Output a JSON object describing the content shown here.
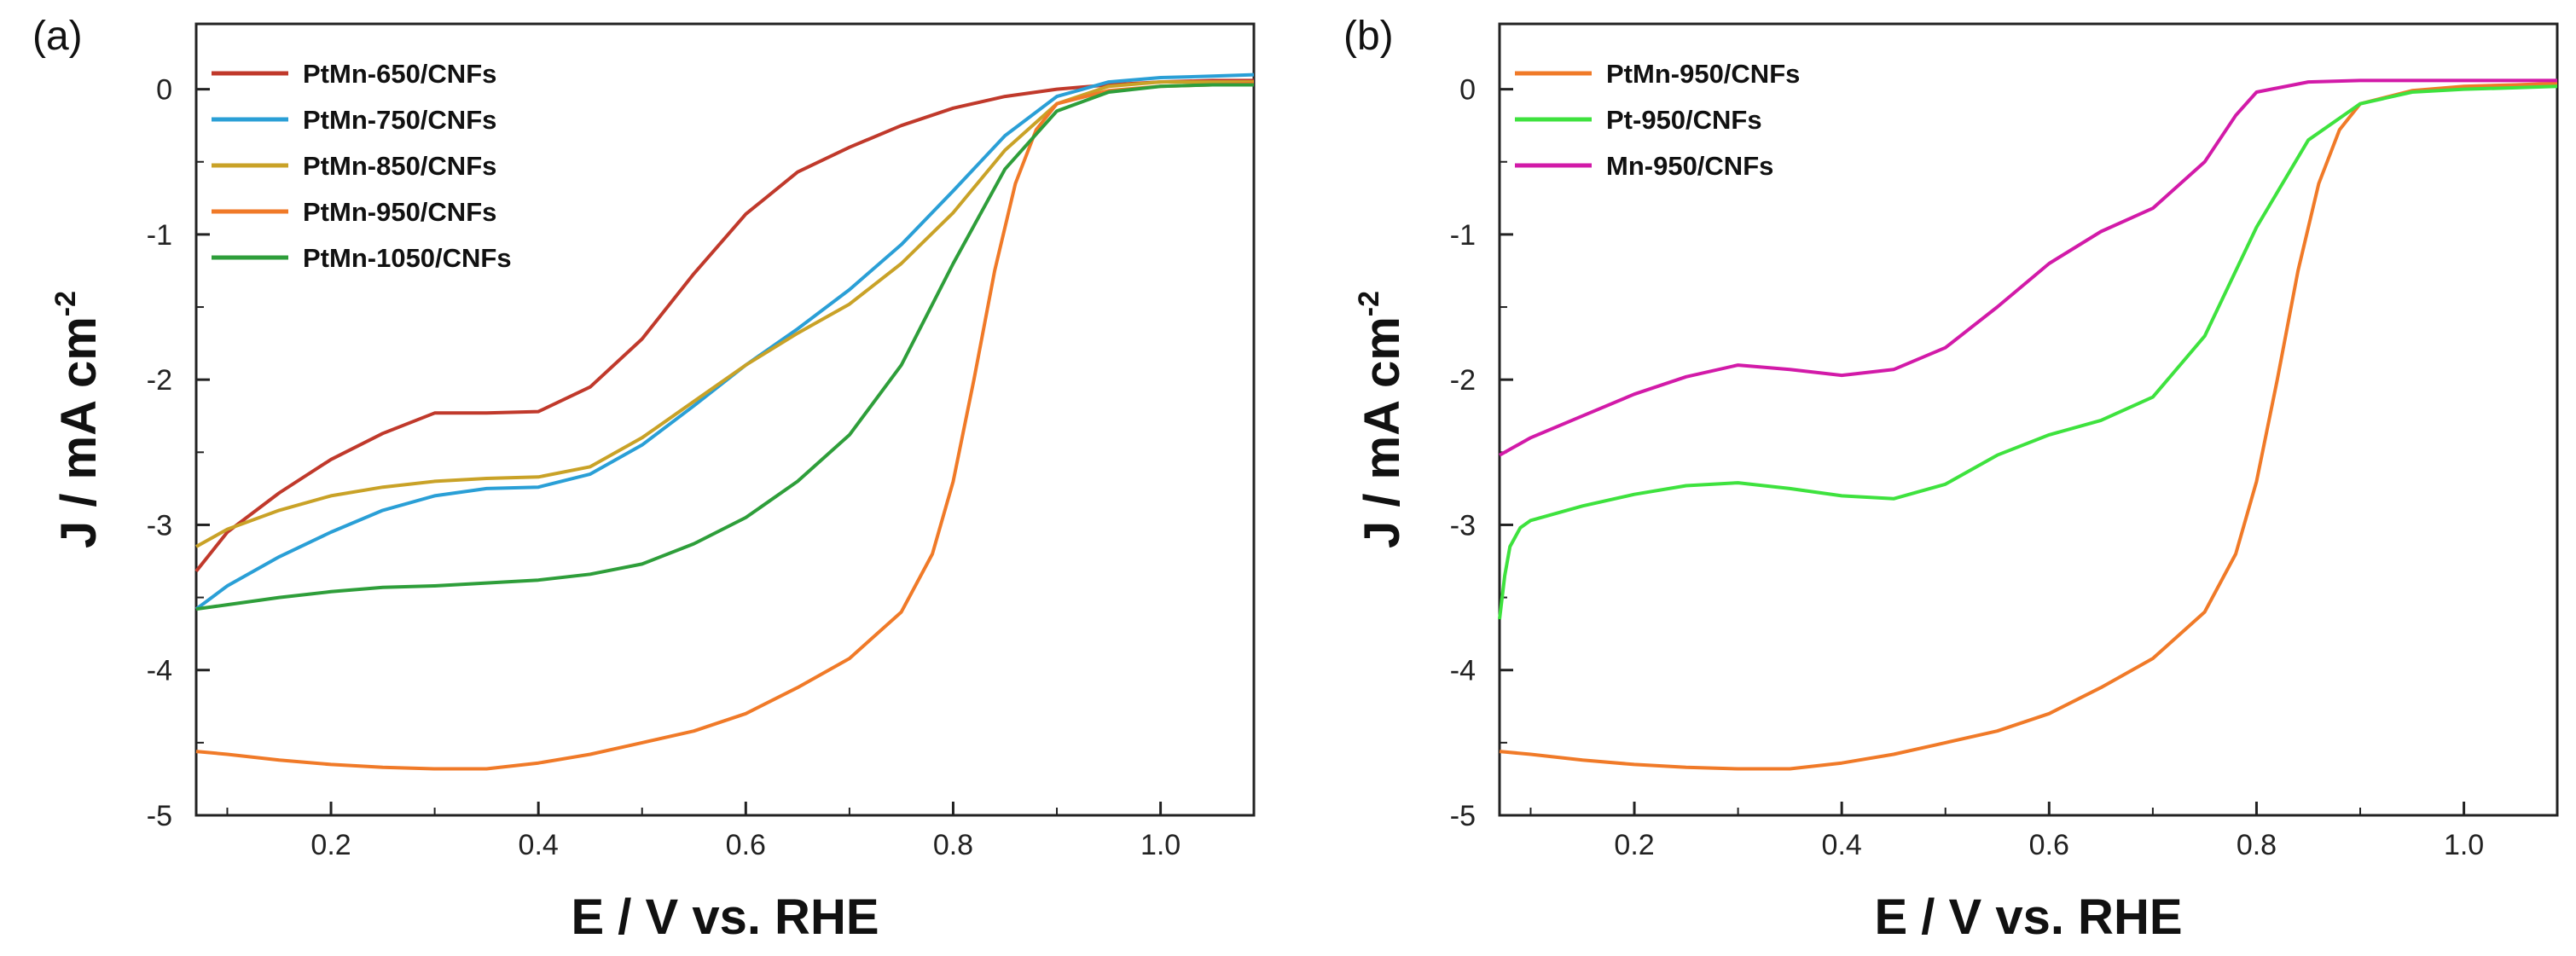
{
  "chart_data": [
    {
      "panel": "(a)",
      "type": "line",
      "xlabel": "E / V vs. RHE",
      "ylabel": "J / mA cm",
      "ylabel_sup": "-2",
      "xlim": [
        0.07,
        1.09
      ],
      "ylim": [
        -5,
        0.45
      ],
      "xticks": [
        0.2,
        0.4,
        0.6,
        0.8,
        1.0
      ],
      "xtick_labels": [
        "0.2",
        "0.4",
        "0.6",
        "0.8",
        "1.0"
      ],
      "yticks": [
        0,
        -1,
        -2,
        -3,
        -4,
        -5
      ],
      "ytick_labels": [
        "0",
        "-1",
        "-2",
        "-3",
        "-4",
        "-5"
      ],
      "legend_position": "top-left",
      "series": [
        {
          "name": "PtMn-650/CNFs",
          "color": "#c0392b",
          "x": [
            0.07,
            0.1,
            0.15,
            0.2,
            0.25,
            0.3,
            0.35,
            0.4,
            0.45,
            0.5,
            0.55,
            0.6,
            0.65,
            0.7,
            0.75,
            0.8,
            0.85,
            0.9,
            0.95,
            1.0,
            1.05,
            1.09
          ],
          "y": [
            -3.32,
            -3.05,
            -2.78,
            -2.55,
            -2.37,
            -2.23,
            -2.23,
            -2.22,
            -2.05,
            -1.72,
            -1.27,
            -0.86,
            -0.57,
            -0.4,
            -0.25,
            -0.13,
            -0.05,
            0.0,
            0.03,
            0.05,
            0.06,
            0.06
          ]
        },
        {
          "name": "PtMn-750/CNFs",
          "color": "#2a9fd6",
          "x": [
            0.07,
            0.1,
            0.15,
            0.2,
            0.25,
            0.3,
            0.35,
            0.4,
            0.45,
            0.5,
            0.55,
            0.6,
            0.65,
            0.7,
            0.75,
            0.8,
            0.85,
            0.9,
            0.95,
            1.0,
            1.05,
            1.09
          ],
          "y": [
            -3.58,
            -3.42,
            -3.22,
            -3.05,
            -2.9,
            -2.8,
            -2.75,
            -2.74,
            -2.65,
            -2.45,
            -2.18,
            -1.9,
            -1.65,
            -1.38,
            -1.07,
            -0.7,
            -0.32,
            -0.05,
            0.05,
            0.08,
            0.09,
            0.1
          ]
        },
        {
          "name": "PtMn-850/CNFs",
          "color": "#c9a227",
          "x": [
            0.07,
            0.1,
            0.15,
            0.2,
            0.25,
            0.3,
            0.35,
            0.4,
            0.45,
            0.5,
            0.55,
            0.6,
            0.65,
            0.7,
            0.75,
            0.8,
            0.85,
            0.9,
            0.95,
            1.0,
            1.05,
            1.09
          ],
          "y": [
            -3.15,
            -3.03,
            -2.9,
            -2.8,
            -2.74,
            -2.7,
            -2.68,
            -2.67,
            -2.6,
            -2.4,
            -2.15,
            -1.9,
            -1.68,
            -1.48,
            -1.2,
            -0.85,
            -0.42,
            -0.1,
            0.02,
            0.05,
            0.05,
            0.05
          ]
        },
        {
          "name": "PtMn-950/CNFs",
          "color": "#f07a28",
          "x": [
            0.07,
            0.1,
            0.15,
            0.2,
            0.25,
            0.3,
            0.35,
            0.4,
            0.45,
            0.5,
            0.55,
            0.6,
            0.65,
            0.7,
            0.75,
            0.78,
            0.8,
            0.82,
            0.84,
            0.86,
            0.88,
            0.9,
            0.95,
            1.0,
            1.05,
            1.09
          ],
          "y": [
            -4.56,
            -4.58,
            -4.62,
            -4.65,
            -4.67,
            -4.68,
            -4.68,
            -4.64,
            -4.58,
            -4.5,
            -4.42,
            -4.3,
            -4.12,
            -3.92,
            -3.6,
            -3.2,
            -2.7,
            -2.0,
            -1.25,
            -0.65,
            -0.28,
            -0.1,
            -0.01,
            0.02,
            0.03,
            0.04
          ]
        },
        {
          "name": "PtMn-1050/CNFs",
          "color": "#2e9e3a",
          "x": [
            0.07,
            0.1,
            0.15,
            0.2,
            0.25,
            0.3,
            0.35,
            0.4,
            0.45,
            0.5,
            0.55,
            0.6,
            0.65,
            0.7,
            0.75,
            0.8,
            0.85,
            0.9,
            0.95,
            1.0,
            1.05,
            1.09
          ],
          "y": [
            -3.58,
            -3.55,
            -3.5,
            -3.46,
            -3.43,
            -3.42,
            -3.4,
            -3.38,
            -3.34,
            -3.27,
            -3.13,
            -2.95,
            -2.7,
            -2.38,
            -1.9,
            -1.2,
            -0.55,
            -0.15,
            -0.02,
            0.02,
            0.03,
            0.03
          ]
        }
      ]
    },
    {
      "panel": "(b)",
      "type": "line",
      "xlabel": "E / V vs. RHE",
      "ylabel": "J / mA cm",
      "ylabel_sup": "-2",
      "xlim": [
        0.07,
        1.09
      ],
      "ylim": [
        -5,
        0.45
      ],
      "xticks": [
        0.2,
        0.4,
        0.6,
        0.8,
        1.0
      ],
      "xtick_labels": [
        "0.2",
        "0.4",
        "0.6",
        "0.8",
        "1.0"
      ],
      "yticks": [
        0,
        -1,
        -2,
        -3,
        -4,
        -5
      ],
      "ytick_labels": [
        "0",
        "-1",
        "-2",
        "-3",
        "-4",
        "-5"
      ],
      "legend_position": "top-left",
      "series": [
        {
          "name": "PtMn-950/CNFs",
          "color": "#f07a28",
          "x": [
            0.07,
            0.1,
            0.15,
            0.2,
            0.25,
            0.3,
            0.35,
            0.4,
            0.45,
            0.5,
            0.55,
            0.6,
            0.65,
            0.7,
            0.75,
            0.78,
            0.8,
            0.82,
            0.84,
            0.86,
            0.88,
            0.9,
            0.95,
            1.0,
            1.05,
            1.09
          ],
          "y": [
            -4.56,
            -4.58,
            -4.62,
            -4.65,
            -4.67,
            -4.68,
            -4.68,
            -4.64,
            -4.58,
            -4.5,
            -4.42,
            -4.3,
            -4.12,
            -3.92,
            -3.6,
            -3.2,
            -2.7,
            -2.0,
            -1.25,
            -0.65,
            -0.28,
            -0.1,
            -0.01,
            0.02,
            0.03,
            0.04
          ]
        },
        {
          "name": "Pt-950/CNFs",
          "color": "#3ee23e",
          "x": [
            0.07,
            0.075,
            0.08,
            0.09,
            0.1,
            0.15,
            0.2,
            0.25,
            0.3,
            0.35,
            0.4,
            0.45,
            0.5,
            0.55,
            0.6,
            0.65,
            0.7,
            0.75,
            0.8,
            0.85,
            0.9,
            0.95,
            1.0,
            1.05,
            1.09
          ],
          "y": [
            -3.65,
            -3.35,
            -3.15,
            -3.02,
            -2.97,
            -2.87,
            -2.79,
            -2.73,
            -2.71,
            -2.75,
            -2.8,
            -2.82,
            -2.72,
            -2.52,
            -2.38,
            -2.28,
            -2.12,
            -1.7,
            -0.95,
            -0.35,
            -0.1,
            -0.02,
            0.0,
            0.01,
            0.02
          ]
        },
        {
          "name": "Mn-950/CNFs",
          "color": "#d21aa8",
          "x": [
            0.07,
            0.1,
            0.15,
            0.2,
            0.25,
            0.3,
            0.35,
            0.4,
            0.45,
            0.5,
            0.55,
            0.6,
            0.65,
            0.7,
            0.75,
            0.78,
            0.8,
            0.85,
            0.9,
            0.95,
            1.0,
            1.05,
            1.09
          ],
          "y": [
            -2.52,
            -2.4,
            -2.25,
            -2.1,
            -1.98,
            -1.9,
            -1.93,
            -1.97,
            -1.93,
            -1.78,
            -1.5,
            -1.2,
            -0.98,
            -0.82,
            -0.5,
            -0.18,
            -0.02,
            0.05,
            0.06,
            0.06,
            0.06,
            0.06,
            0.06
          ]
        }
      ]
    }
  ]
}
